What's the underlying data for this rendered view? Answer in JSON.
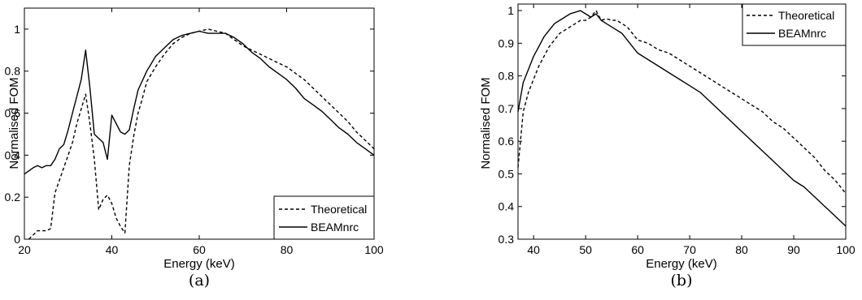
{
  "chart_data": [
    {
      "type": "line",
      "caption": "(a)",
      "xlabel": "Energy (keV)",
      "ylabel": "Normalised FOM",
      "xlim": [
        20,
        100
      ],
      "ylim": [
        0,
        1.1
      ],
      "xticks": [
        20,
        40,
        60,
        80,
        100
      ],
      "yticks": [
        0,
        0.2,
        0.4,
        0.6,
        0.8,
        1
      ],
      "grid": false,
      "legend_position": "bottom-right",
      "series": [
        {
          "name": "Theoretical",
          "style": "dashed",
          "x": [
            21,
            22,
            23,
            25,
            26,
            27,
            28,
            29,
            30,
            31,
            32,
            33,
            34,
            35,
            36,
            37,
            38,
            39,
            40,
            41,
            42,
            43,
            44,
            45,
            46,
            47,
            48,
            50,
            52,
            54,
            56,
            58,
            60,
            62,
            64,
            66,
            68,
            70,
            72,
            74,
            76,
            78,
            80,
            82,
            84,
            86,
            88,
            90,
            92,
            94,
            96,
            98,
            100
          ],
          "y": [
            0.0,
            0.02,
            0.04,
            0.04,
            0.05,
            0.22,
            0.28,
            0.34,
            0.4,
            0.46,
            0.55,
            0.62,
            0.69,
            0.55,
            0.38,
            0.14,
            0.19,
            0.21,
            0.17,
            0.1,
            0.06,
            0.03,
            0.35,
            0.49,
            0.6,
            0.67,
            0.75,
            0.82,
            0.88,
            0.93,
            0.96,
            0.98,
            0.99,
            1.0,
            0.99,
            0.98,
            0.95,
            0.92,
            0.9,
            0.88,
            0.86,
            0.84,
            0.82,
            0.79,
            0.76,
            0.72,
            0.68,
            0.64,
            0.6,
            0.56,
            0.51,
            0.47,
            0.43
          ]
        },
        {
          "name": "BEAMnrc",
          "style": "solid",
          "x": [
            20,
            22,
            23,
            24,
            25,
            26,
            27,
            28,
            29,
            30,
            31,
            32,
            33,
            34,
            35,
            36,
            37,
            38,
            39,
            40,
            41,
            42,
            43,
            44,
            45,
            46,
            48,
            50,
            52,
            54,
            56,
            58,
            60,
            62,
            64,
            66,
            68,
            70,
            72,
            74,
            76,
            78,
            80,
            82,
            84,
            86,
            88,
            90,
            92,
            94,
            96,
            98,
            100
          ],
          "y": [
            0.31,
            0.34,
            0.35,
            0.34,
            0.35,
            0.35,
            0.38,
            0.43,
            0.45,
            0.52,
            0.6,
            0.68,
            0.76,
            0.9,
            0.72,
            0.5,
            0.48,
            0.46,
            0.38,
            0.59,
            0.55,
            0.51,
            0.5,
            0.52,
            0.62,
            0.71,
            0.8,
            0.87,
            0.91,
            0.95,
            0.97,
            0.98,
            0.99,
            0.98,
            0.98,
            0.98,
            0.96,
            0.93,
            0.89,
            0.86,
            0.82,
            0.79,
            0.76,
            0.72,
            0.67,
            0.64,
            0.61,
            0.57,
            0.53,
            0.5,
            0.46,
            0.43,
            0.4
          ]
        }
      ]
    },
    {
      "type": "line",
      "caption": "(b)",
      "xlabel": "Energy (keV)",
      "ylabel": "Normalised FOM",
      "xlim": [
        37,
        100
      ],
      "ylim": [
        0.3,
        1.02
      ],
      "xticks": [
        40,
        50,
        60,
        70,
        80,
        90,
        100
      ],
      "yticks": [
        0.3,
        0.4,
        0.5,
        0.6,
        0.7,
        0.8,
        0.9,
        1
      ],
      "grid": false,
      "legend_position": "top-right",
      "series": [
        {
          "name": "Theoretical",
          "style": "dashed",
          "x": [
            37,
            38,
            39,
            40,
            41,
            42,
            43,
            44,
            45,
            46,
            47,
            48,
            49,
            50,
            51,
            52,
            53,
            54,
            55,
            56,
            57,
            58,
            59,
            60,
            62,
            64,
            66,
            68,
            70,
            72,
            74,
            76,
            78,
            80,
            82,
            84,
            86,
            88,
            90,
            92,
            94,
            96,
            98,
            100
          ],
          "y": [
            0.52,
            0.69,
            0.75,
            0.79,
            0.83,
            0.86,
            0.89,
            0.91,
            0.93,
            0.94,
            0.95,
            0.96,
            0.97,
            0.97,
            0.98,
            1.0,
            0.97,
            0.975,
            0.97,
            0.97,
            0.96,
            0.95,
            0.93,
            0.91,
            0.9,
            0.88,
            0.87,
            0.85,
            0.83,
            0.81,
            0.79,
            0.77,
            0.75,
            0.73,
            0.71,
            0.69,
            0.66,
            0.64,
            0.61,
            0.58,
            0.55,
            0.51,
            0.48,
            0.44
          ]
        },
        {
          "name": "BEAMnrc",
          "style": "solid",
          "x": [
            37,
            38,
            39,
            40,
            41,
            42,
            43,
            44,
            45,
            46,
            47,
            48,
            49,
            50,
            51,
            52,
            53,
            54,
            55,
            56,
            57,
            58,
            59,
            60,
            62,
            64,
            66,
            68,
            70,
            72,
            74,
            76,
            78,
            80,
            82,
            84,
            86,
            88,
            90,
            92,
            94,
            96,
            98,
            100
          ],
          "y": [
            0.69,
            0.78,
            0.82,
            0.86,
            0.89,
            0.92,
            0.94,
            0.96,
            0.97,
            0.98,
            0.99,
            0.995,
            1.0,
            0.99,
            0.98,
            0.99,
            0.97,
            0.96,
            0.95,
            0.94,
            0.93,
            0.91,
            0.89,
            0.87,
            0.85,
            0.83,
            0.81,
            0.79,
            0.77,
            0.75,
            0.72,
            0.69,
            0.66,
            0.63,
            0.6,
            0.57,
            0.54,
            0.51,
            0.48,
            0.46,
            0.43,
            0.4,
            0.37,
            0.34
          ]
        }
      ]
    }
  ]
}
